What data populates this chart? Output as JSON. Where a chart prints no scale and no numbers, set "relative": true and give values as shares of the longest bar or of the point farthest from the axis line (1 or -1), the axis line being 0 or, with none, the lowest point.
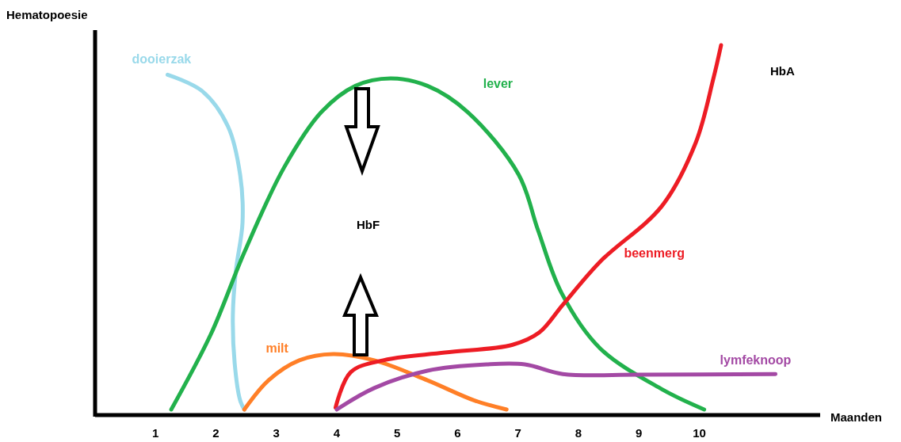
{
  "chart_data": {
    "type": "line",
    "relative": true,
    "xlabel": "Maanden",
    "ylabel": "Hematopoesie",
    "xlim": [
      0,
      12
    ],
    "xticks": [
      1,
      2,
      3,
      4,
      5,
      6,
      7,
      8,
      9,
      10
    ],
    "marker": "none",
    "line_style": "solid",
    "annotations": [
      "HbF",
      "HbA"
    ],
    "series": [
      {
        "name": "dooierzak",
        "color": "#99d9ea",
        "x": [
          1.2,
          1.77,
          2.2,
          2.4,
          2.44,
          2.33,
          2.28,
          2.31,
          2.4,
          2.47
        ],
        "values": [
          0.92,
          0.876,
          0.78,
          0.65,
          0.52,
          0.39,
          0.27,
          0.14,
          0.04,
          0.015
        ]
      },
      {
        "name": "lever",
        "color": "#22b14c",
        "x": [
          1.26,
          1.92,
          2.47,
          3.13,
          3.75,
          4.31,
          4.89,
          5.5,
          6.16,
          7.01,
          7.33,
          7.72,
          8.36,
          9.38,
          10.08
        ],
        "values": [
          0.015,
          0.22,
          0.44,
          0.67,
          0.82,
          0.89,
          0.91,
          0.89,
          0.82,
          0.65,
          0.5,
          0.33,
          0.18,
          0.07,
          0.015
        ]
      },
      {
        "name": "milt",
        "color": "#ff7f27",
        "x": [
          2.47,
          2.87,
          3.38,
          3.94,
          4.62,
          5.5,
          6.27,
          6.81
        ],
        "values": [
          0.015,
          0.094,
          0.148,
          0.165,
          0.148,
          0.094,
          0.04,
          0.015
        ]
      },
      {
        "name": "beenmerg",
        "color": "#ed1c24",
        "x": [
          3.98,
          4.23,
          4.77,
          5.79,
          6.91,
          7.35,
          7.74,
          8.36,
          9.38,
          9.94,
          10.23,
          10.36
        ],
        "values": [
          0.02,
          0.116,
          0.148,
          0.169,
          0.19,
          0.223,
          0.298,
          0.415,
          0.565,
          0.736,
          0.908,
          1.0
        ]
      },
      {
        "name": "lymfeknoop",
        "color": "#a349a4",
        "x": [
          4.0,
          4.62,
          5.5,
          6.48,
          7.11,
          7.74,
          9.0,
          11.26
        ],
        "values": [
          0.015,
          0.073,
          0.12,
          0.137,
          0.137,
          0.111,
          0.109,
          0.111
        ]
      }
    ]
  }
}
